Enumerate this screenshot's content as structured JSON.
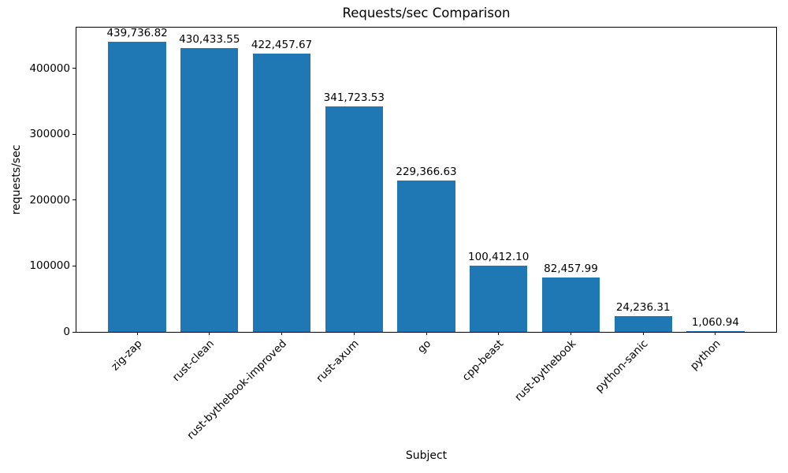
{
  "chart_data": {
    "type": "bar",
    "title": "Requests/sec Comparison",
    "xlabel": "Subject",
    "ylabel": "requests/sec",
    "categories": [
      "zig-zap",
      "rust-clean",
      "rust-bythebook-improved",
      "rust-axum",
      "go",
      "cpp-beast",
      "rust-bythebook",
      "python-sanic",
      "python"
    ],
    "values": [
      439736.82,
      430433.55,
      422457.67,
      341723.53,
      229366.63,
      100412.1,
      82457.99,
      24236.31,
      1060.94
    ],
    "value_labels": [
      "439,736.82",
      "430,433.55",
      "422,457.67",
      "341,723.53",
      "229,366.63",
      "100,412.10",
      "82,457.99",
      "24,236.31",
      "1,060.94"
    ],
    "yticks": [
      0,
      100000,
      200000,
      300000,
      400000
    ],
    "ytick_labels": [
      "0",
      "100000",
      "200000",
      "300000",
      "400000"
    ],
    "ylim": [
      0,
      461723.66
    ],
    "bar_color": "#1f77b4",
    "text_color": "#000000",
    "background_color": "#ffffff",
    "grid": false,
    "legend_position": "none",
    "x_tick_rotation_deg": 45
  }
}
